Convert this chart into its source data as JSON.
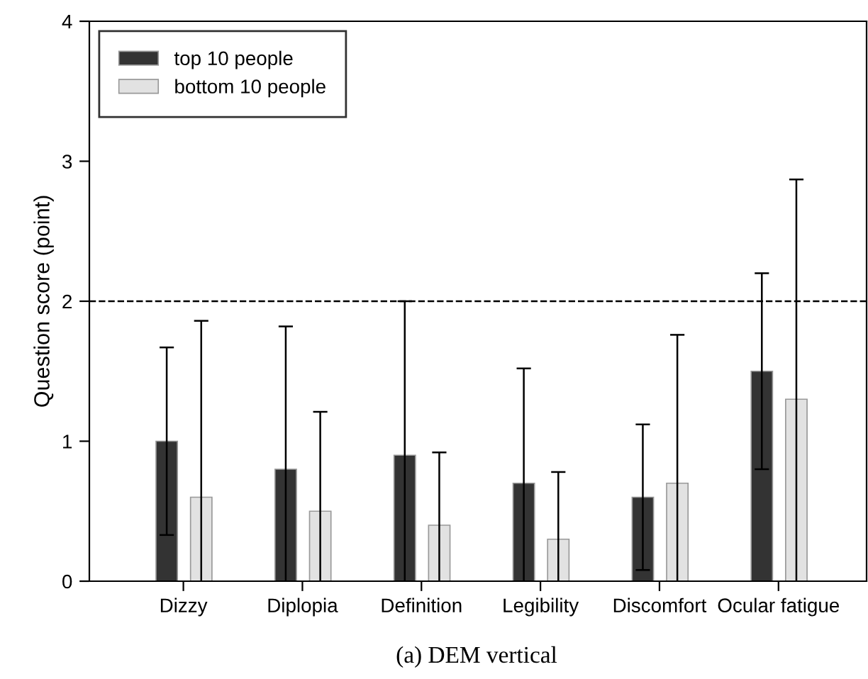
{
  "chart_data": {
    "type": "bar",
    "ylabel": "Question score (point)",
    "categories": [
      "Dizzy",
      "Diplopia",
      "Definition",
      "Legibility",
      "Discomfort",
      "Ocular fatigue"
    ],
    "series": [
      {
        "name": "top 10 people",
        "color": "#333333",
        "values": [
          1.0,
          0.8,
          0.9,
          0.7,
          0.6,
          1.5
        ],
        "errors": [
          [
            0.33,
            1.67
          ],
          [
            0,
            1.82
          ],
          [
            0,
            2.0
          ],
          [
            0,
            1.52
          ],
          [
            0.08,
            1.12
          ],
          [
            0.8,
            2.2
          ]
        ]
      },
      {
        "name": "bottom 10 people",
        "color": "#e2e2e2",
        "values": [
          0.6,
          0.5,
          0.4,
          0.3,
          0.7,
          1.3
        ],
        "errors": [
          [
            0,
            1.86
          ],
          [
            0,
            1.21
          ],
          [
            0,
            0.92
          ],
          [
            0,
            0.78
          ],
          [
            0,
            1.76
          ],
          [
            0,
            2.87
          ]
        ]
      }
    ],
    "ylim": [
      0,
      4
    ],
    "yticks": [
      0,
      1,
      2,
      3,
      4
    ],
    "ref_lines": [
      {
        "axis": "y",
        "value": 2,
        "line_style": "dashed",
        "color": "#000000"
      }
    ],
    "legend": "top left",
    "grid": false,
    "annotations": [
      "(a) DEM vertical"
    ]
  }
}
